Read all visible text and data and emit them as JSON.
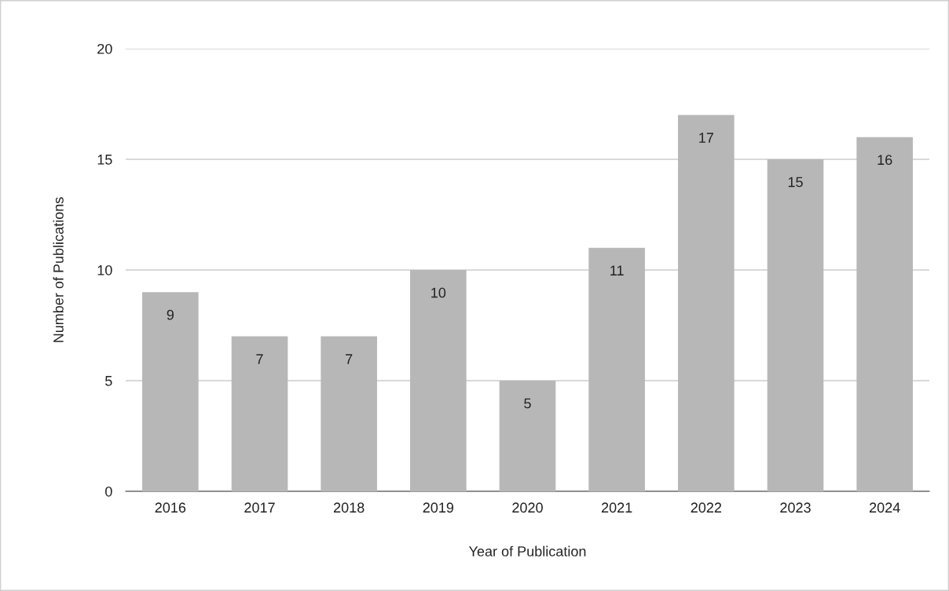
{
  "chart_data": {
    "type": "bar",
    "xlabel": "Year of Publication",
    "ylabel": "Number of Publications",
    "categories": [
      "2016",
      "2017",
      "2018",
      "2019",
      "2020",
      "2021",
      "2022",
      "2023",
      "2024"
    ],
    "values": [
      9,
      7,
      7,
      10,
      5,
      11,
      17,
      15,
      16
    ],
    "color": "#b7b7b7",
    "ylim": [
      0,
      20
    ],
    "yticks": [
      0,
      5,
      10,
      15,
      20
    ],
    "grid": "y",
    "data_labels": true,
    "legend": false
  }
}
